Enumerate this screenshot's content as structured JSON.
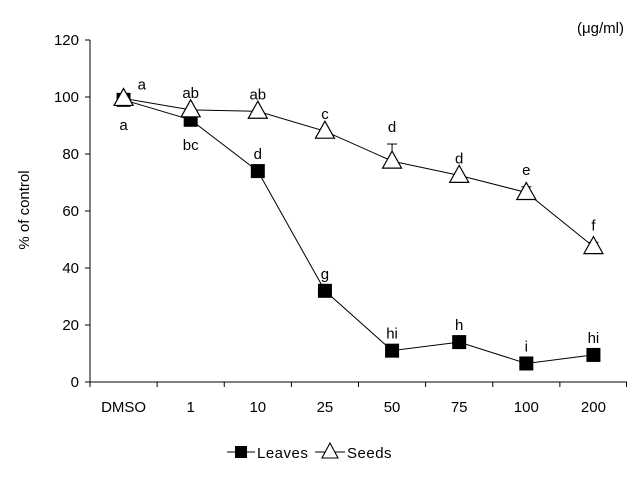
{
  "chart_data": {
    "type": "line",
    "unit_label": "(μg/ml)",
    "ylabel": "% of control",
    "xlabel": "",
    "ylim": [
      0,
      120
    ],
    "yticks": [
      0,
      20,
      40,
      60,
      80,
      100,
      120
    ],
    "categories": [
      "DMSO",
      "1",
      "10",
      "25",
      "50",
      "75",
      "100",
      "200"
    ],
    "grid": false,
    "legend_position": "bottom-center",
    "series": [
      {
        "name": "Leaves",
        "marker": "filled-square",
        "color": "#000000",
        "values": [
          99,
          92,
          74,
          32,
          11,
          14,
          6.5,
          9.5
        ],
        "error": [
          0,
          0,
          0,
          0,
          0,
          0,
          0,
          0
        ],
        "labels": [
          "a",
          "bc",
          "d",
          "g",
          "hi",
          "h",
          "i",
          "hi"
        ],
        "label_side": [
          "below",
          "below",
          "above",
          "above",
          "above",
          "above",
          "above",
          "above"
        ]
      },
      {
        "name": "Seeds",
        "marker": "open-triangle",
        "color": "#000000",
        "values": [
          99.5,
          95.5,
          95,
          88,
          77.5,
          72.5,
          66.5,
          47.5
        ],
        "error": [
          0,
          0,
          0,
          0,
          6,
          0,
          2,
          1.5
        ],
        "labels": [
          "a",
          "ab",
          "ab",
          "c",
          "d",
          "d",
          "e",
          "f"
        ],
        "label_side": [
          "above-right",
          "above",
          "above",
          "above",
          "above",
          "above",
          "above",
          "above"
        ]
      }
    ]
  }
}
